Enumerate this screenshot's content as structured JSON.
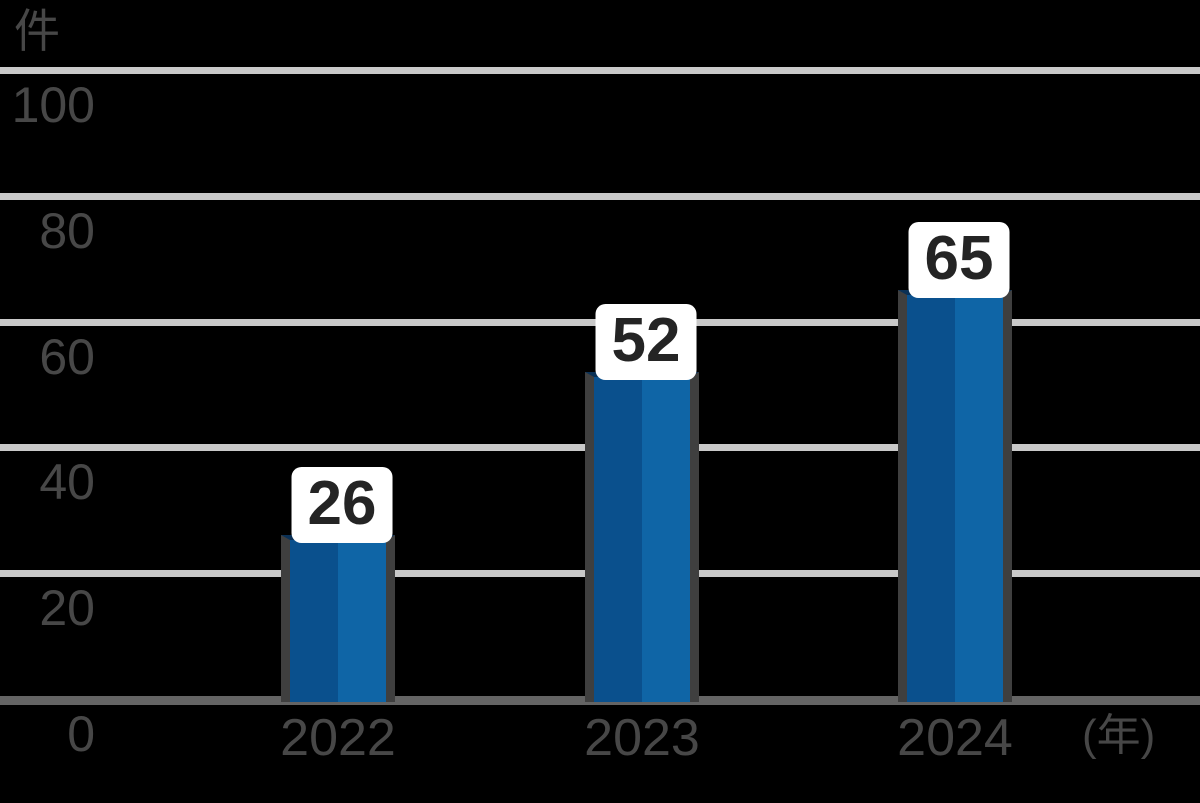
{
  "chart_data": {
    "type": "bar",
    "title": "",
    "categories": [
      "2022",
      "2023",
      "2024"
    ],
    "values": [
      26,
      52,
      65
    ],
    "data_labels": [
      "26",
      "52",
      "65"
    ],
    "y_ticks": [
      0,
      20,
      40,
      60,
      80,
      100
    ],
    "ylim": [
      0,
      100
    ],
    "xlabel": "",
    "ylabel": "",
    "y_unit": "件",
    "x_unit": "(年)",
    "grid": "horizontal",
    "legend": "none"
  },
  "colors": {
    "background": "#000000",
    "gridline": "#c9c9c9",
    "axis_line": "#646464",
    "bar_fill_left": "#0a508d",
    "bar_fill_right": "#0f65a6",
    "bar_top_edge": "#0a3055",
    "bar_side_edge": "#3f3f3f",
    "tick_label_text": "#474747",
    "value_label_text": "#242424",
    "value_label_bg": "#ffffff"
  }
}
